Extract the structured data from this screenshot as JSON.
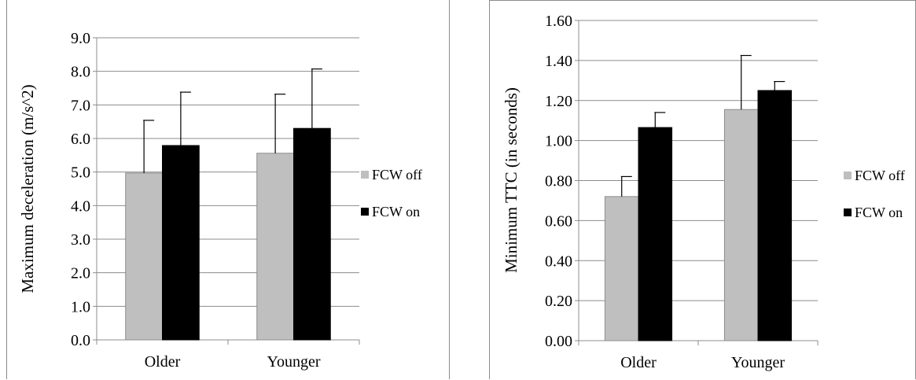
{
  "chart_data": [
    {
      "type": "bar",
      "categories": [
        "Older",
        "Younger"
      ],
      "ylabel": "Maximum deceleration (m/s^2)",
      "xlabel": "",
      "ylim": [
        0,
        9
      ],
      "ytick_step": 1,
      "ytick_decimals": 1,
      "grid": true,
      "legend_position": "right",
      "series": [
        {
          "name": "FCW off",
          "color": "#bfbfbf",
          "values": [
            4.97,
            5.56
          ],
          "errors": [
            1.57,
            1.76
          ]
        },
        {
          "name": "FCW on",
          "color": "#000000",
          "values": [
            5.79,
            6.3
          ],
          "errors": [
            1.59,
            1.77
          ]
        }
      ]
    },
    {
      "type": "bar",
      "categories": [
        "Older",
        "Younger"
      ],
      "ylabel": "Minimum TTC (in seconds)",
      "xlabel": "",
      "ylim": [
        0,
        1.6
      ],
      "ytick_step": 0.2,
      "ytick_decimals": 2,
      "grid": true,
      "legend_position": "right",
      "series": [
        {
          "name": "FCW off",
          "color": "#bfbfbf",
          "values": [
            0.72,
            1.155
          ],
          "errors": [
            0.1,
            0.27
          ]
        },
        {
          "name": "FCW on",
          "color": "#000000",
          "values": [
            1.065,
            1.25
          ],
          "errors": [
            0.075,
            0.045
          ]
        }
      ]
    }
  ]
}
